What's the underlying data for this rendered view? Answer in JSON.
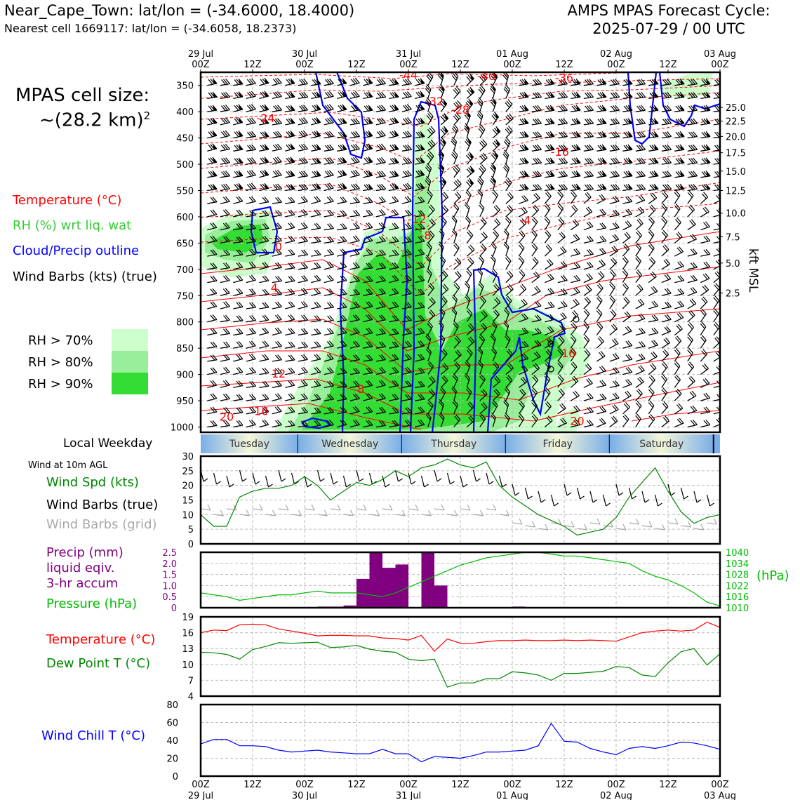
{
  "header": {
    "title": "Near_Cape_Town: lat/lon = (-34.6000, 18.4000)",
    "subtitle": "Nearest cell 1669117: lat/lon = (-34.6058, 18.2373)",
    "cycle_line1": "AMPS MPAS Forecast Cycle:",
    "cycle_line2": "2025-07-29 / 00 UTC"
  },
  "cell_size": {
    "line1": "MPAS cell size:",
    "line2": "~(28.2 km)",
    "sup": "2"
  },
  "legend_upper": {
    "temperature": "Temperature (°C)",
    "rh": "RH (%) wrt liq. wat",
    "cloud": "Cloud/Precip outline",
    "wind": "Wind Barbs (kts) (true)"
  },
  "rh_legend": [
    "RH > 70%",
    "RH > 80%",
    "RH > 90%"
  ],
  "colors": {
    "temperature": "#ff0000",
    "rh": "#33cc33",
    "cloud": "#0000ff",
    "precip": "#800080",
    "pressure": "#00bb00",
    "dewpoint": "#008800",
    "windchill": "#0000ff",
    "windspd": "#008800",
    "grid_barb": "#aaaaaa",
    "rh70": "#ccffcc",
    "rh80": "#99ee99",
    "rh90": "#33dd33"
  },
  "time_axis": {
    "top_dates": [
      "29 Jul",
      "",
      "30 Jul",
      "",
      "31 Jul",
      "",
      "01 Aug",
      "",
      "02 Aug",
      "",
      "03 Aug"
    ],
    "top_hours": [
      "00Z",
      "12Z",
      "00Z",
      "12Z",
      "00Z",
      "12Z",
      "00Z",
      "12Z",
      "00Z",
      "12Z",
      "00Z"
    ],
    "bottom_hours": [
      "00Z",
      "12Z",
      "00Z",
      "12Z",
      "00Z",
      "12Z",
      "00Z",
      "12Z",
      "00Z",
      "12Z",
      "00Z"
    ],
    "bottom_dates": [
      "29 Jul",
      "",
      "30 Jul",
      "",
      "31 Jul",
      "",
      "01 Aug",
      "",
      "02 Aug",
      "",
      "03 Aug"
    ]
  },
  "weekday": {
    "label": "Local Weekday",
    "days": [
      "Tuesday",
      "Wednesday",
      "Thursday",
      "Friday",
      "Saturday"
    ]
  },
  "panel_labels": {
    "wind10m": "Wind at 10m AGL",
    "wind_spd": "Wind Spd (kts)",
    "wind_barbs_true": "Wind Barbs (true)",
    "wind_barbs_grid": "Wind Barbs (grid)",
    "precip1": "Precip (mm)",
    "precip2": "liquid eqiv.",
    "precip3": "3-hr accum",
    "pressure": "Pressure (hPa)",
    "pressure_unit": "(hPa)",
    "temp": "Temperature (°C)",
    "dew": "Dew Point T (°C)",
    "windchill": "Wind Chill T (°C)",
    "kft": "kft MSL"
  },
  "chart_data": [
    {
      "type": "heatmap",
      "panel": "cross-section",
      "y_axis": "pressure (hPa)",
      "y_ticks": [
        350,
        400,
        450,
        500,
        550,
        600,
        650,
        700,
        750,
        800,
        850,
        900,
        950,
        1000
      ],
      "ylim": [
        1010,
        325
      ],
      "right_axis_ticks": [
        "25.0",
        "22.5",
        "20.0",
        "17.5",
        "15.0",
        "12.5",
        "10.0",
        "7.5",
        "5.0",
        "2.5"
      ],
      "right_axis_pressures": [
        392,
        418,
        447,
        478,
        513,
        550,
        593,
        638,
        688,
        745
      ],
      "temp_labels": [
        {
          "text": "-44",
          "t": 48,
          "p": 338
        },
        {
          "text": "-40",
          "t": 66,
          "p": 340
        },
        {
          "text": "-36",
          "t": 84,
          "p": 343
        },
        {
          "text": "-32",
          "t": 54,
          "p": 388
        },
        {
          "text": "-28",
          "t": 60,
          "p": 404
        },
        {
          "text": "-24",
          "t": 15,
          "p": 420
        },
        {
          "text": "-16",
          "t": 83,
          "p": 484
        },
        {
          "text": "-12",
          "t": 50,
          "p": 612
        },
        {
          "text": "-8",
          "t": 52,
          "p": 643
        },
        {
          "text": "-4",
          "t": 75,
          "p": 614
        },
        {
          "text": "0",
          "t": 18,
          "p": 664
        },
        {
          "text": "4",
          "t": 17,
          "p": 742
        },
        {
          "text": "12",
          "t": 18,
          "p": 906
        },
        {
          "text": "16",
          "t": 14,
          "p": 977
        },
        {
          "text": "8",
          "t": 37,
          "p": 935
        },
        {
          "text": "20",
          "t": 6,
          "p": 988
        },
        {
          "text": "16",
          "t": 85,
          "p": 867
        },
        {
          "text": "20",
          "t": 87,
          "p": 996
        }
      ]
    },
    {
      "type": "line",
      "panel": "wind-10m",
      "ylim": [
        0,
        30
      ],
      "yticks": [
        0,
        5,
        10,
        15,
        20,
        25,
        30
      ],
      "x_hours": [
        0,
        3,
        6,
        9,
        12,
        15,
        18,
        21,
        24,
        27,
        30,
        33,
        36,
        39,
        42,
        45,
        48,
        51,
        54,
        57,
        60,
        63,
        66,
        69,
        72,
        75,
        78,
        81,
        84,
        87,
        90,
        93,
        96,
        99,
        102,
        105,
        108,
        111,
        114,
        117,
        120
      ],
      "series": [
        {
          "values": [
            10,
            6,
            6,
            16,
            18,
            19,
            19,
            20,
            23,
            20,
            15,
            18,
            21,
            20,
            22,
            25,
            23,
            26,
            27,
            29,
            27,
            26,
            28,
            20,
            16,
            13,
            10,
            8,
            6,
            3,
            4,
            5,
            9,
            16,
            21,
            26,
            18,
            11,
            7,
            9,
            10
          ]
        }
      ]
    },
    {
      "type": "bar",
      "panel": "precip-pressure",
      "ylim": [
        0,
        2.5
      ],
      "yticks": [
        0,
        0.5,
        1.0,
        1.5,
        2.0,
        2.5
      ],
      "precip_x_hours": [
        30,
        33,
        36,
        39,
        42,
        45,
        48,
        51,
        54,
        57,
        60,
        63,
        66,
        69,
        72,
        75,
        78
      ],
      "precip_values": [
        0.05,
        0.05,
        0.1,
        1.3,
        2.5,
        1.8,
        1.95,
        0.0,
        2.5,
        1.0,
        0.0,
        0.0,
        0.0,
        0.0,
        0.0,
        0.05,
        0.0
      ],
      "pressure_ylim": [
        1010,
        1040
      ],
      "pressure_yticks": [
        1010,
        1016,
        1022,
        1028,
        1034,
        1040
      ],
      "pressure_values": [
        1018,
        1017,
        1016,
        1014,
        1015,
        1016,
        1017,
        1017,
        1018,
        1019,
        1018,
        1018,
        1018,
        1017,
        1016,
        1018,
        1021,
        1024,
        1027,
        1030,
        1033,
        1035,
        1037,
        1038,
        1039,
        1040,
        1040,
        1039,
        1038,
        1038,
        1037,
        1036,
        1035,
        1034,
        1030,
        1027,
        1025,
        1022,
        1018,
        1013,
        1011
      ]
    },
    {
      "type": "line",
      "panel": "temp-dewpoint",
      "ylim": [
        4,
        19
      ],
      "yticks": [
        4,
        7,
        10,
        13,
        16,
        19
      ],
      "series": [
        {
          "name": "Temperature (°C)",
          "values": [
            16,
            16.5,
            16.4,
            17.5,
            17.6,
            17.5,
            16.7,
            16.3,
            15.9,
            15.4,
            15.5,
            15.5,
            15.4,
            15.4,
            15.0,
            14.9,
            14.6,
            15.5,
            12.5,
            14.8,
            14,
            14,
            14.3,
            14.5,
            14.5,
            14.6,
            14.5,
            14.5,
            14.6,
            14.5,
            14.6,
            14.5,
            14.4,
            15.2,
            16,
            16.3,
            16.5,
            16.3,
            16.5,
            18,
            17
          ]
        },
        {
          "name": "Dew Point T (°C)",
          "values": [
            12.3,
            12.2,
            11.9,
            11,
            12.8,
            13.4,
            14.1,
            14,
            14.1,
            14.2,
            13.2,
            13.3,
            13.6,
            12.9,
            12.5,
            12.3,
            11,
            10.7,
            11.0,
            5.7,
            6.5,
            6.5,
            7.3,
            7.3,
            8.6,
            8.4,
            8.0,
            7.0,
            8.3,
            8.3,
            8.5,
            8.7,
            9.6,
            9.4,
            8,
            7.7,
            10.3,
            12.4,
            13,
            9.9,
            12
          ]
        }
      ]
    },
    {
      "type": "line",
      "panel": "windchill",
      "ylim": [
        0,
        80
      ],
      "yticks": [
        0,
        20,
        40,
        60,
        80
      ],
      "series": [
        {
          "name": "Wind Chill T (°C)",
          "values": [
            36,
            41,
            41,
            34,
            34,
            33,
            29,
            27,
            28,
            29,
            27,
            26,
            25,
            25,
            30,
            25,
            25,
            16,
            22,
            21,
            20,
            23,
            27,
            27,
            28,
            29,
            34,
            59,
            39,
            38,
            31,
            27,
            24,
            31,
            33,
            31,
            34,
            38,
            37,
            34,
            30
          ]
        }
      ]
    }
  ]
}
